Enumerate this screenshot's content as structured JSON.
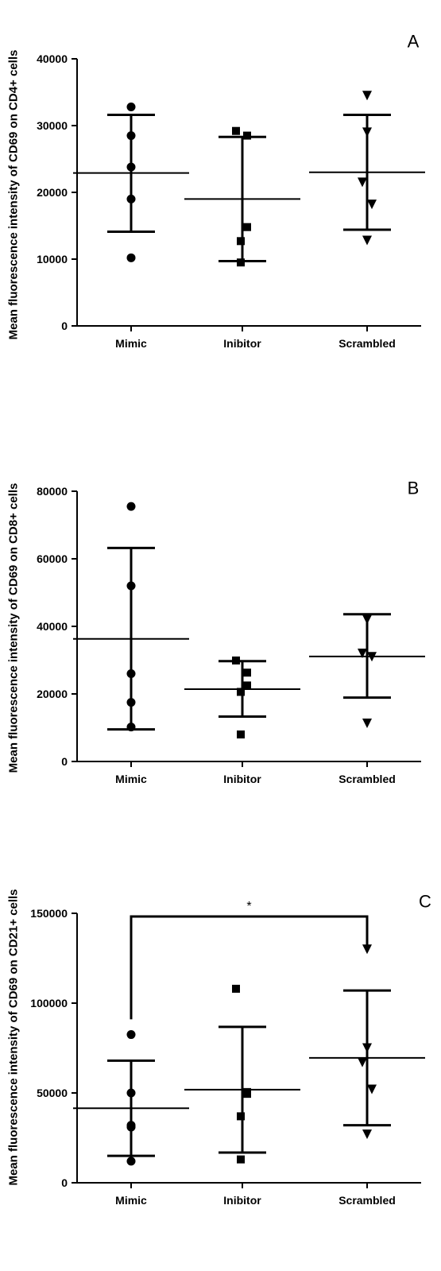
{
  "chart_data": [
    {
      "type": "scatter",
      "panel_label": "A",
      "ylabel": "Mean fluorescence intensity of CD69 on CD4+ cells",
      "categories": [
        "Mimic",
        "Inibitor",
        "Scrambled"
      ],
      "yticks": [
        0,
        10000,
        20000,
        30000,
        40000
      ],
      "ylim": [
        0,
        40000
      ],
      "series": [
        {
          "category": "Mimic",
          "marker": "circle",
          "points": [
            32800,
            28500,
            23800,
            19000,
            10200
          ],
          "mean": 22900,
          "sd_low": 14100,
          "sd_high": 31600
        },
        {
          "category": "Inibitor",
          "marker": "square",
          "points": [
            29200,
            28500,
            14800,
            12700,
            9500
          ],
          "mean": 19000,
          "sd_low": 9700,
          "sd_high": 28300
        },
        {
          "category": "Scrambled",
          "marker": "triangle-down",
          "points": [
            34500,
            29000,
            21500,
            18200,
            12800
          ],
          "mean": 23000,
          "sd_low": 14400,
          "sd_high": 31600
        }
      ],
      "significance": []
    },
    {
      "type": "scatter",
      "panel_label": "B",
      "ylabel": "Mean fluorescence intensity of CD69 on CD8+ cells",
      "categories": [
        "Mimic",
        "Inibitor",
        "Scrambled"
      ],
      "yticks": [
        0,
        20000,
        40000,
        60000,
        80000
      ],
      "ylim": [
        0,
        80000
      ],
      "series": [
        {
          "category": "Mimic",
          "marker": "circle",
          "points": [
            75500,
            52000,
            26000,
            17500,
            10200
          ],
          "mean": 36300,
          "sd_low": 9500,
          "sd_high": 63200
        },
        {
          "category": "Inibitor",
          "marker": "square",
          "points": [
            29900,
            26300,
            22500,
            20600,
            8000
          ],
          "mean": 21400,
          "sd_low": 13300,
          "sd_high": 29700
        },
        {
          "category": "Scrambled",
          "marker": "triangle-down",
          "points": [
            42300,
            42000,
            32000,
            31000,
            11300
          ],
          "mean": 31100,
          "sd_low": 18900,
          "sd_high": 43600
        }
      ],
      "significance": []
    },
    {
      "type": "scatter",
      "panel_label": "C",
      "ylabel": "Mean fluorescence intensity of CD69 on CD21+ cells",
      "categories": [
        "Mimic",
        "Inibitor",
        "Scrambled"
      ],
      "yticks": [
        0,
        50000,
        100000,
        150000
      ],
      "ylim": [
        0,
        150000
      ],
      "series": [
        {
          "category": "Mimic",
          "marker": "circle",
          "points": [
            82500,
            50000,
            32000,
            31000,
            12000
          ],
          "mean": 41500,
          "sd_low": 15000,
          "sd_high": 68000
        },
        {
          "category": "Inibitor",
          "marker": "square",
          "points": [
            108000,
            50500,
            49500,
            37000,
            13000
          ],
          "mean": 51800,
          "sd_low": 16800,
          "sd_high": 86800
        },
        {
          "category": "Scrambled",
          "marker": "triangle-down",
          "points": [
            130000,
            75000,
            67000,
            52000,
            27000
          ],
          "mean": 69500,
          "sd_low": 32000,
          "sd_high": 107000
        }
      ],
      "significance": [
        {
          "from": "Mimic",
          "to": "Scrambled",
          "label": "*",
          "bracket_y": 150000,
          "drop_from": 91000,
          "drop_to": 130000
        }
      ]
    }
  ]
}
